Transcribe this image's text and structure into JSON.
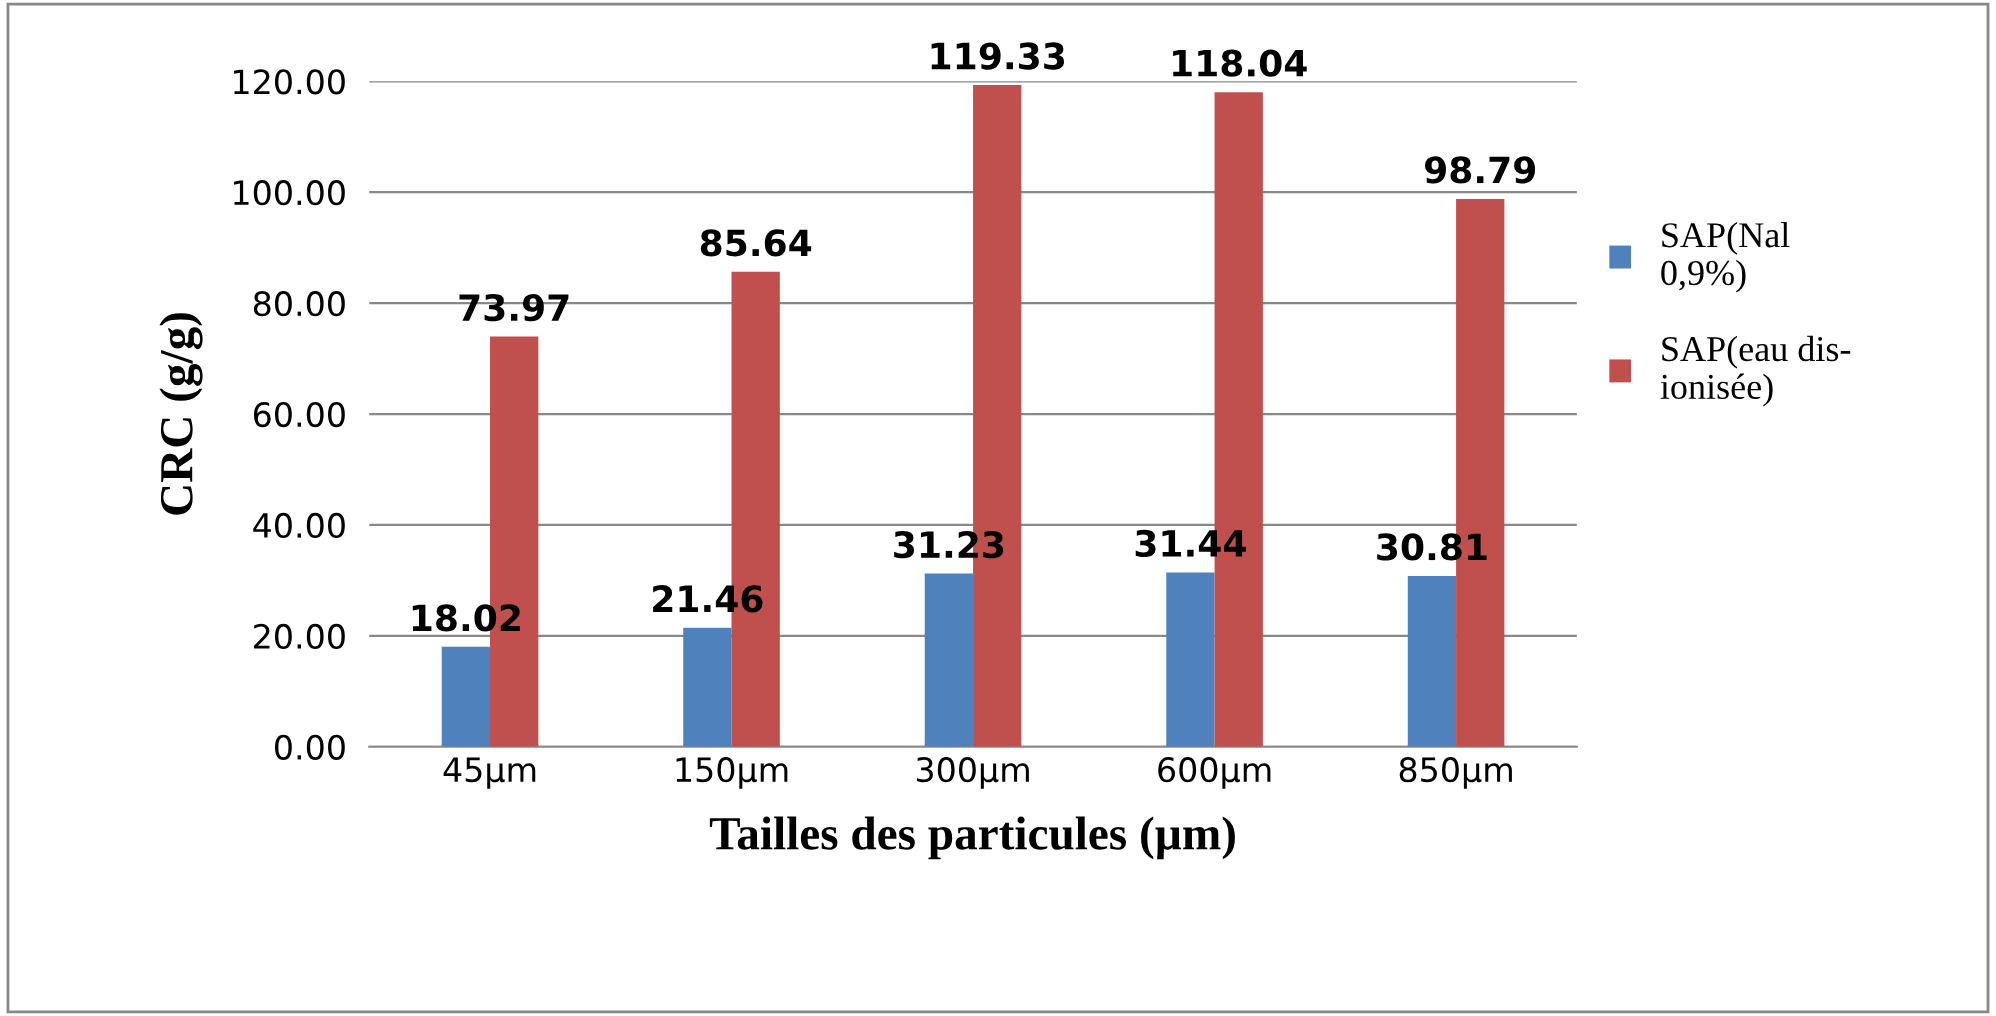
{
  "chart_data": {
    "type": "bar",
    "xlabel": "Tailles des particules (µm)",
    "ylabel": "CRC (g/g)",
    "categories": [
      "45µm",
      "150µm",
      "300µm",
      "600µm",
      "850µm"
    ],
    "series": [
      {
        "name": "SAP(Nal\n0,9%)",
        "color": "#4f81bd",
        "values": [
          18.02,
          21.46,
          31.23,
          31.44,
          30.81
        ]
      },
      {
        "name": "SAP(eau dis-\nionisée)",
        "color": "#c0504d",
        "values": [
          73.97,
          85.64,
          119.33,
          118.04,
          98.79
        ]
      }
    ],
    "ylim": [
      0,
      120
    ],
    "yticks": [
      {
        "value": 0,
        "label": "0.00"
      },
      {
        "value": 20,
        "label": "20.00"
      },
      {
        "value": 40,
        "label": "40.00"
      },
      {
        "value": 60,
        "label": "60.00"
      },
      {
        "value": 80,
        "label": "80.00"
      },
      {
        "value": 100,
        "label": "100.00"
      },
      {
        "value": 120,
        "label": "120.00"
      }
    ],
    "grid": "y",
    "legend": "right",
    "data_labels": true
  }
}
